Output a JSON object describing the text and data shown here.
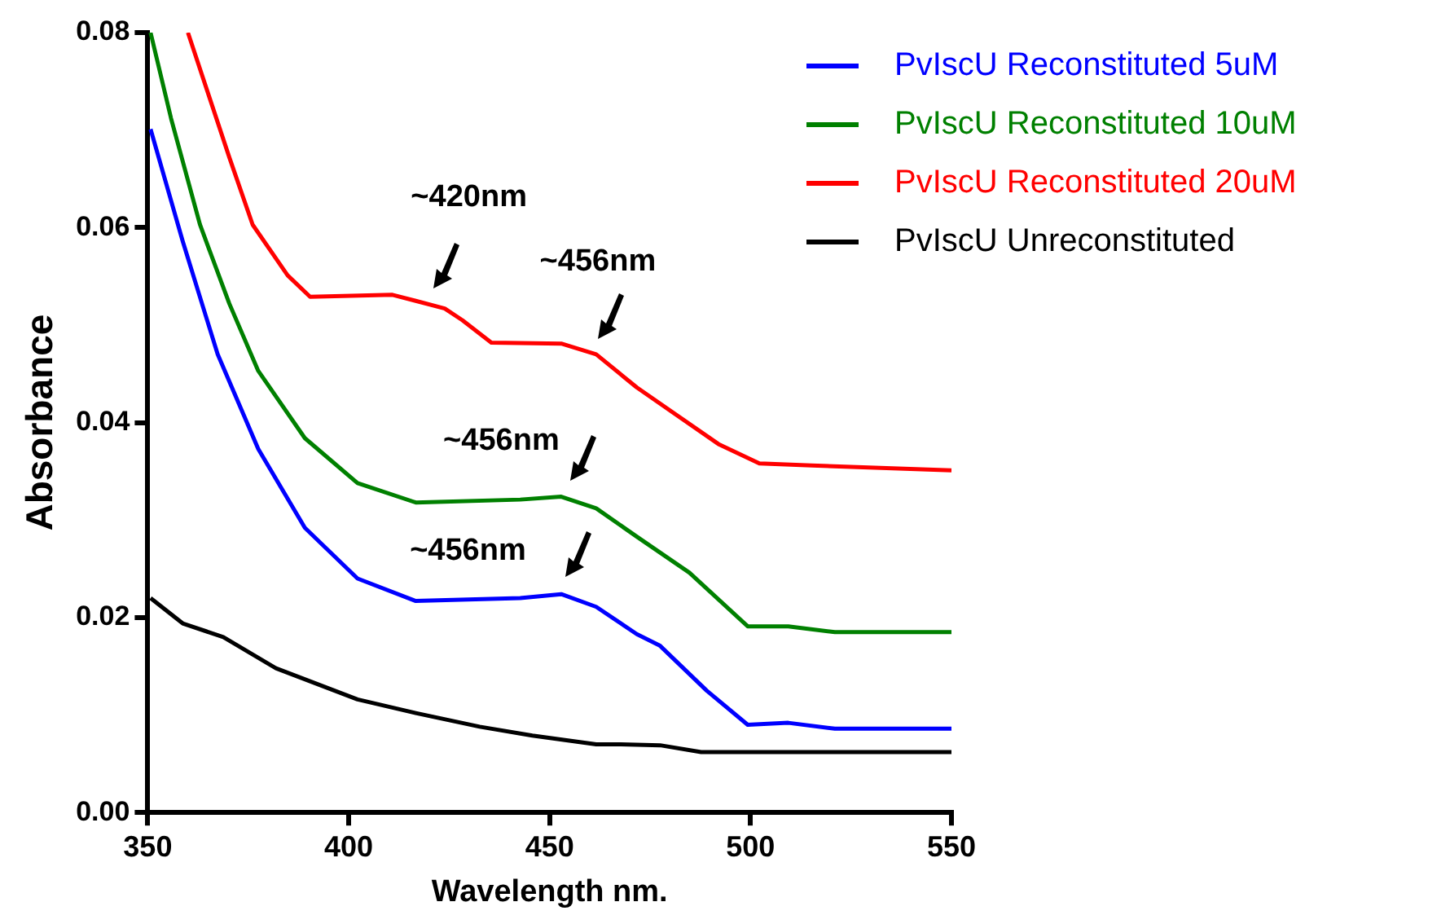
{
  "chart_data": {
    "type": "line",
    "xlabel": "Wavelength nm.",
    "ylabel": "Absorbance",
    "xlim": [
      350,
      550
    ],
    "xticks": [
      350,
      400,
      450,
      500,
      550
    ],
    "ylim": [
      0,
      0.08
    ],
    "yticks": [
      {
        "value": 0,
        "label": "0.00"
      },
      {
        "value": 0.02,
        "label": "0.02"
      },
      {
        "value": 0.04,
        "label": "0.04"
      },
      {
        "value": 0.06,
        "label": "0.06"
      },
      {
        "value": 0.08,
        "label": "0.08"
      }
    ],
    "grid": false,
    "legend": "top right",
    "marker": "none",
    "line_style": "solid",
    "series": [
      {
        "name": "PvIscU Reconstituted 5uM",
        "color": "#0000ff",
        "x": [
          350.7,
          358.7,
          367.4,
          377.5,
          389.1,
          402.2,
          416.7,
          442.7,
          452.9,
          461.6,
          471.7,
          477.5,
          489.1,
          499.3,
          509.4,
          521,
          550
        ],
        "values": [
          0.0701,
          0.0586,
          0.047,
          0.0373,
          0.0292,
          0.024,
          0.0217,
          0.022,
          0.0224,
          0.0211,
          0.0183,
          0.0171,
          0.0125,
          0.009,
          0.0092,
          0.0086,
          0.0086
        ]
      },
      {
        "name": "PvIscU Reconstituted 10uM",
        "color": "#008000",
        "x": [
          350.7,
          355.8,
          363,
          370.3,
          377.5,
          389.1,
          402.2,
          416.7,
          442.7,
          452.9,
          461.6,
          471.7,
          484.8,
          499.3,
          509.4,
          521,
          550
        ],
        "values": [
          0.08,
          0.0712,
          0.0603,
          0.0522,
          0.0453,
          0.0384,
          0.0338,
          0.0318,
          0.0321,
          0.0324,
          0.0312,
          0.0283,
          0.0246,
          0.0191,
          0.0191,
          0.0185,
          0.0185
        ]
      },
      {
        "name": "PvIscU Reconstituted 20uM",
        "color": "#ff0000",
        "x": [
          360,
          370.3,
          376.1,
          384.8,
          390.4,
          410.9,
          416.5,
          423.9,
          428.3,
          435.5,
          452.9,
          461.6,
          471.7,
          492,
          502.2,
          515.2,
          550
        ],
        "values": [
          0.08,
          0.0672,
          0.0603,
          0.0551,
          0.0529,
          0.0531,
          0.0525,
          0.0517,
          0.0505,
          0.0482,
          0.0481,
          0.047,
          0.0436,
          0.0378,
          0.0358,
          0.0356,
          0.0351
        ]
      },
      {
        "name": "PvIscU Unreconstituted",
        "color": "#000000",
        "x": [
          350.7,
          358.7,
          368.8,
          381.9,
          402.2,
          416.7,
          432.6,
          445.7,
          461.6,
          467.4,
          477.5,
          487.7,
          550
        ],
        "values": [
          0.022,
          0.0194,
          0.018,
          0.0148,
          0.0116,
          0.0102,
          0.0088,
          0.0079,
          0.007,
          0.007,
          0.0069,
          0.0062,
          0.0062
        ]
      }
    ],
    "annotations": [
      {
        "text": "~420nm",
        "x": 421,
        "y": 0.052
      },
      {
        "text": "~456nm",
        "x": 462,
        "y": 0.0468
      },
      {
        "text": "~456nm",
        "x": 455,
        "y": 0.0322
      },
      {
        "text": "~456nm",
        "x": 454,
        "y": 0.0223
      }
    ]
  }
}
